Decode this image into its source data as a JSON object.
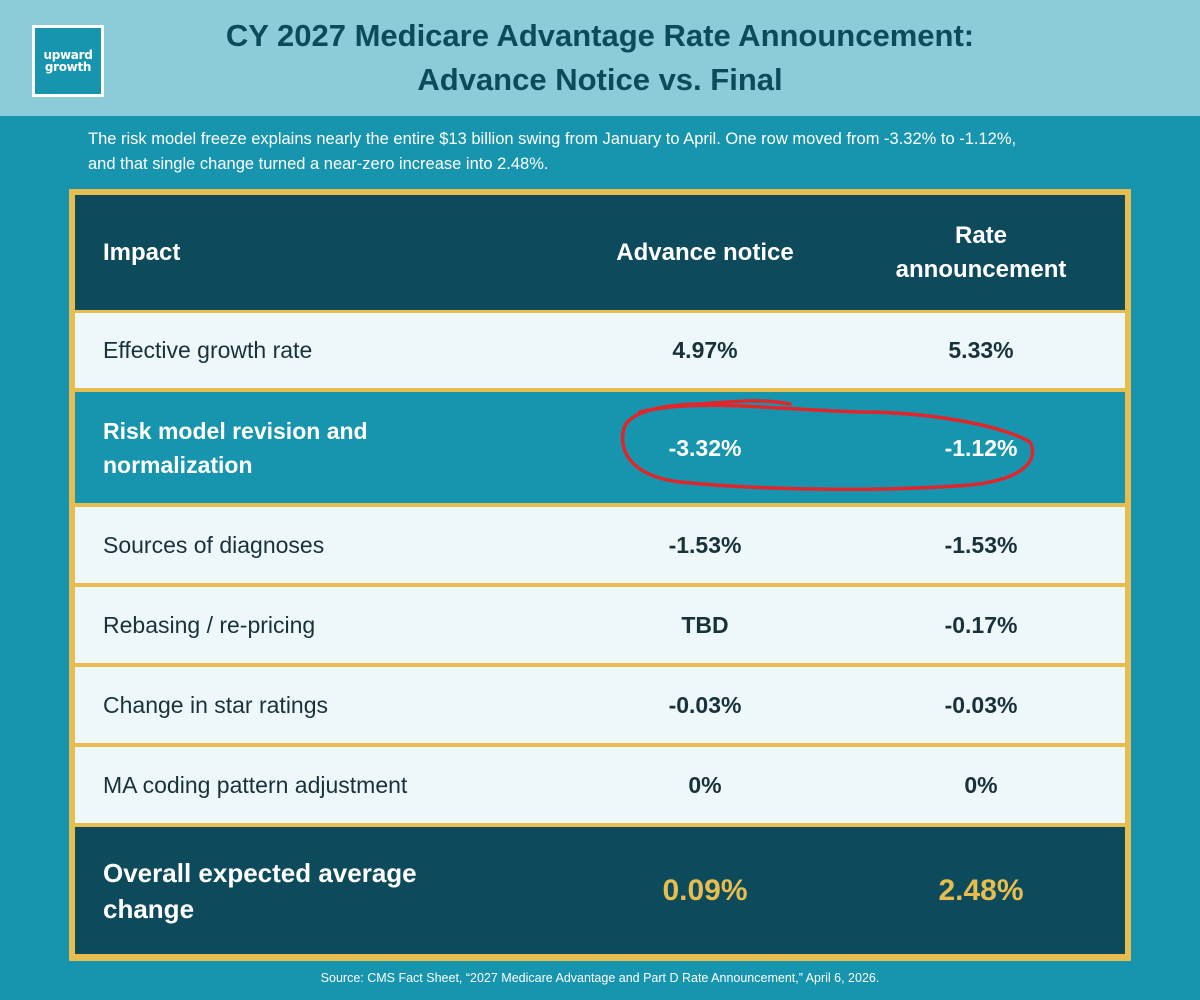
{
  "header": {
    "logo_line1": "upward",
    "logo_line2": "growth",
    "title_line1": "CY 2027 Medicare Advantage Rate Announcement:",
    "title_line2": "Advance Notice vs. Final"
  },
  "subtitle": {
    "line1": "The risk model freeze explains nearly the entire $13 billion swing from January to April.  One row moved from -3.32% to -1.12%,",
    "line2": "and that single change turned a near-zero increase into 2.48%."
  },
  "table": {
    "columns": {
      "impact": "Impact",
      "advance": "Advance notice",
      "final_line1": "Rate",
      "final_line2": "announcement"
    },
    "rows": [
      {
        "impact": "Effective growth rate",
        "advance": "4.97%",
        "final": "5.33%"
      },
      {
        "impact_line1": "Risk model revision and",
        "impact_line2": "normalization",
        "advance": "-3.32%",
        "final": "-1.12%"
      },
      {
        "impact": "Sources of diagnoses",
        "advance": "-1.53%",
        "final": "-1.53%"
      },
      {
        "impact": "Rebasing / re-pricing",
        "advance": "TBD",
        "final": "-0.17%"
      },
      {
        "impact": "Change in star ratings",
        "advance": "-0.03%",
        "final": "-0.03%"
      },
      {
        "impact": "MA coding pattern adjustment",
        "advance": "0%",
        "final": "0%"
      }
    ],
    "total": {
      "impact_line1": "Overall expected average",
      "impact_line2": "change",
      "advance": "0.09%",
      "final": "2.48%"
    }
  },
  "source": "Source: CMS Fact Sheet, “2027 Medicare Advantage and Part D Rate Announcement,” April 6, 2026.",
  "colors": {
    "background": "#1795ae",
    "header_band": "#8ccbd8",
    "dark_teal": "#0d4a5c",
    "gold": "#e8bd4f",
    "annotation_red": "#e0262b"
  }
}
